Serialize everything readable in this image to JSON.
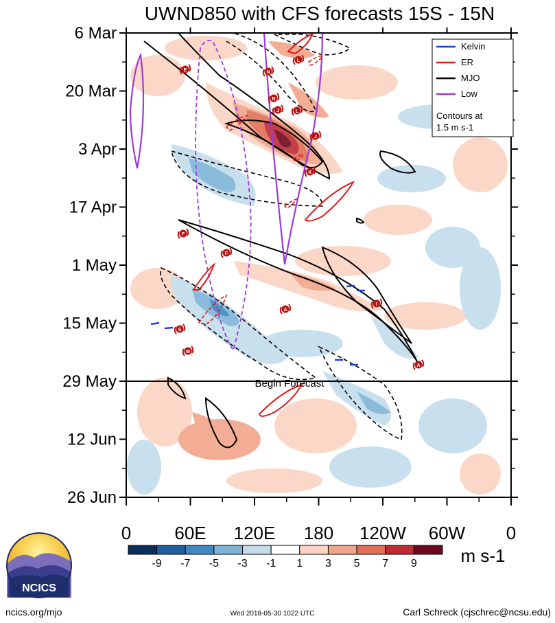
{
  "chart_data": {
    "type": "heatmap",
    "title": "UWND850 with CFS forecasts  15S - 15N",
    "y_dates": [
      "6 Mar",
      "20 Mar",
      "3 Apr",
      "17 Apr",
      "1 May",
      "15 May",
      "29 May",
      "12 Jun",
      "26 Jun"
    ],
    "x_labels": [
      "0",
      "60E",
      "120E",
      "180",
      "120W",
      "60W",
      "0"
    ],
    "x_range_deg": [
      0,
      360
    ],
    "forecast_label": "Begin Forecast",
    "forecast_date": "29 May",
    "colorbar": {
      "labels": [
        "-9",
        "-7",
        "-5",
        "-3",
        "-1",
        "1",
        "3",
        "5",
        "7",
        "9"
      ],
      "colors": [
        "#0a2f5c",
        "#1f5f9e",
        "#3f88c0",
        "#7fb4d8",
        "#c3dcec",
        "#ffffff",
        "#fbd3c2",
        "#f1a589",
        "#df6f56",
        "#bf2b35",
        "#6e0a20"
      ],
      "units": "m s-1"
    },
    "legend": {
      "items": [
        {
          "label": "Kelvin",
          "color": "#1f3fd8"
        },
        {
          "label": "ER",
          "color": "#e01a1a"
        },
        {
          "label": "MJO",
          "color": "#000000"
        },
        {
          "label": "Low",
          "color": "#9a3ad8"
        }
      ],
      "note_line1": "Contours at",
      "note_line2": "1.5 m s-1"
    }
  },
  "footer": {
    "logo_text": "NCICS",
    "url": "ncics.org/mjo",
    "timestamp": "Wed 2018-05-30 1022 UTC",
    "author": "Carl Schreck (cjschrec@ncsu.edu)"
  },
  "storm_markers": [
    "E",
    "N",
    "L",
    "N",
    "J",
    "L",
    "J",
    "K",
    "F",
    "F",
    "S",
    "M",
    "I",
    "A",
    "A"
  ]
}
